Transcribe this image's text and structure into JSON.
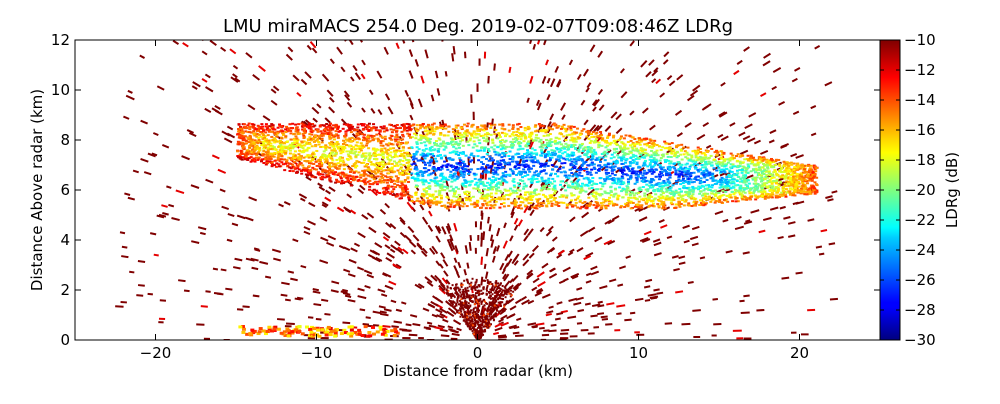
{
  "chart_data": {
    "type": "heatmap",
    "title": "LMU miraMACS 254.0 Deg. 2019-02-07T09:08:46Z  LDRg",
    "xlabel": "Distance from radar (km)",
    "ylabel": "Distance Above radar  (km)",
    "xlim": [
      -25,
      25
    ],
    "ylim": [
      0,
      12
    ],
    "xticks": [
      -20,
      -10,
      0,
      10,
      20
    ],
    "yticks": [
      0,
      2,
      4,
      6,
      8,
      10,
      12
    ],
    "xtick_labels": [
      "−20",
      "−10",
      "0",
      "10",
      "20"
    ],
    "ytick_labels": [
      "0",
      "2",
      "4",
      "6",
      "8",
      "10",
      "12"
    ],
    "colorbar": {
      "label": "LDRg (dB)",
      "range": [
        -30,
        -10
      ],
      "colormap": "jet",
      "ticks": [
        -10,
        -12,
        -14,
        -16,
        -18,
        -20,
        -22,
        -24,
        -26,
        -28,
        -30
      ],
      "tick_labels": [
        "−10",
        "−12",
        "−14",
        "−16",
        "−18",
        "−20",
        "−22",
        "−24",
        "−26",
        "−28",
        "−30"
      ]
    },
    "regions": [
      {
        "description": "ice cloud layer",
        "x": [
          -15,
          21
        ],
        "y": [
          5.2,
          8.7
        ],
        "ldr_core": -27,
        "ldr_edge": -14
      },
      {
        "description": "near-radar clutter",
        "x": [
          -3,
          3
        ],
        "y": [
          0,
          2.5
        ],
        "ldr": -10
      },
      {
        "description": "scattered noise",
        "x": [
          -22,
          22
        ],
        "y": [
          0,
          12
        ],
        "ldr": -10
      },
      {
        "description": "low-level band",
        "x": [
          -15,
          -5
        ],
        "y": [
          0.2,
          0.6
        ],
        "ldr": -12
      }
    ]
  }
}
